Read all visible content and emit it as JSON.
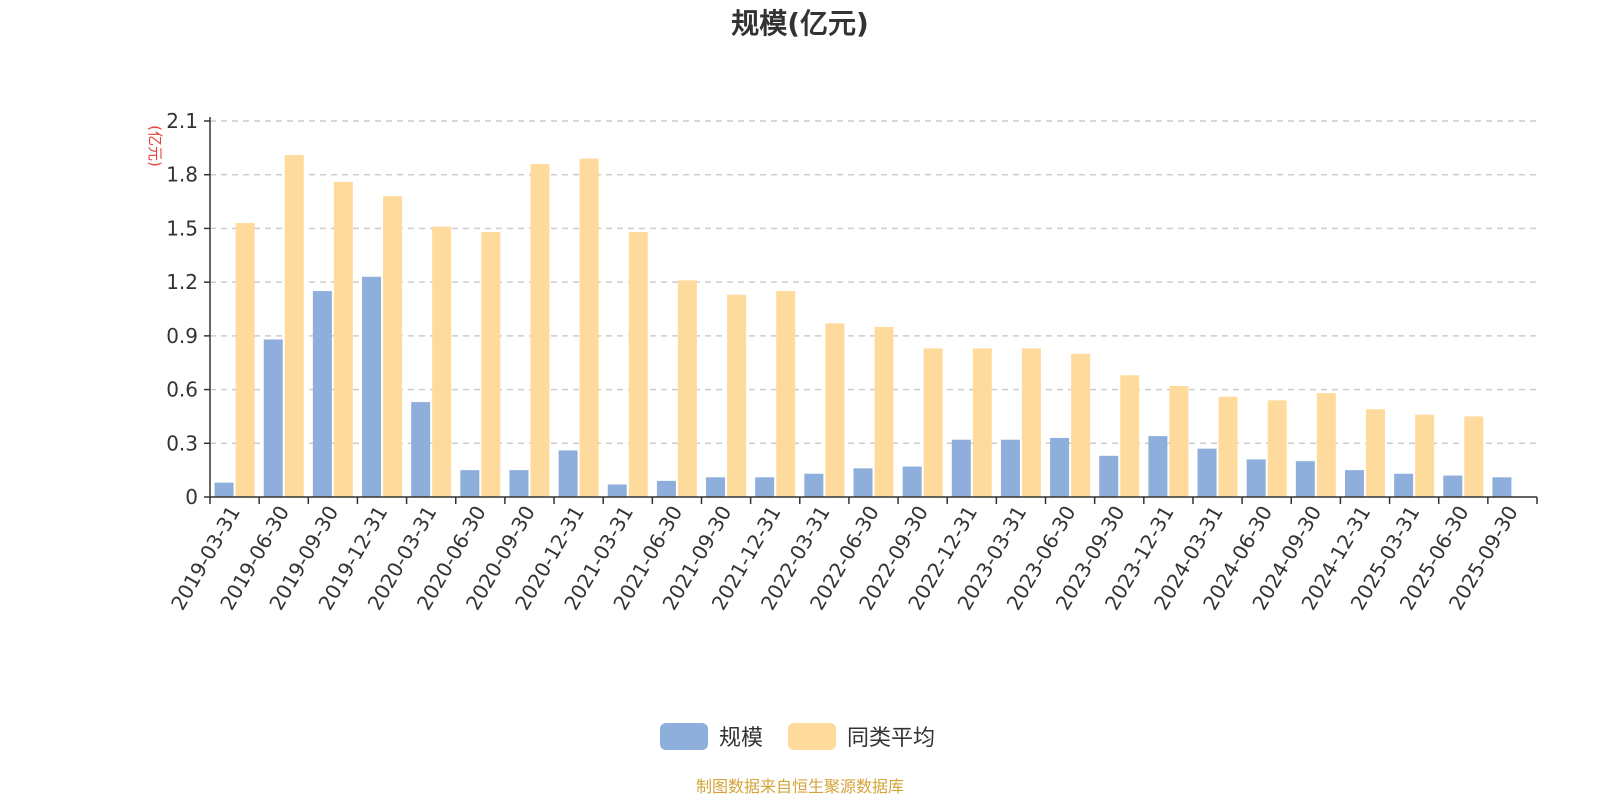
{
  "chart_data": {
    "type": "bar",
    "title": "规模(亿元)",
    "ylabel": "(亿元)",
    "xlabel": "",
    "ylim": [
      0,
      2.1
    ],
    "yticks": [
      "0",
      "0.3",
      "0.6",
      "0.9",
      "1.2",
      "1.5",
      "1.8",
      "2.1"
    ],
    "grid": true,
    "legend_position": "bottom-center",
    "categories": [
      "2019-03-31",
      "2019-06-30",
      "2019-09-30",
      "2019-12-31",
      "2020-03-31",
      "2020-06-30",
      "2020-09-30",
      "2020-12-31",
      "2021-03-31",
      "2021-06-30",
      "2021-09-30",
      "2021-12-31",
      "2022-03-31",
      "2022-06-30",
      "2022-09-30",
      "2022-12-31",
      "2023-03-31",
      "2023-06-30",
      "2023-09-30",
      "2023-12-31",
      "2024-03-31",
      "2024-06-30",
      "2024-09-30",
      "2024-12-31",
      "2025-03-31",
      "2025-06-30",
      "2025-09-30"
    ],
    "series": [
      {
        "name": "规模",
        "color": "#8eaedb",
        "values": [
          0.08,
          0.88,
          1.15,
          1.23,
          0.53,
          0.15,
          0.15,
          0.26,
          0.07,
          0.09,
          0.11,
          0.11,
          0.13,
          0.16,
          0.17,
          0.32,
          0.32,
          0.33,
          0.23,
          0.34,
          0.27,
          0.21,
          0.2,
          0.15,
          0.13,
          0.12,
          0.11
        ]
      },
      {
        "name": "同类平均",
        "color": "#fedb9d",
        "values": [
          1.53,
          1.91,
          1.76,
          1.68,
          1.51,
          1.48,
          1.86,
          1.89,
          1.48,
          1.21,
          1.13,
          1.15,
          0.97,
          0.95,
          0.83,
          0.83,
          0.83,
          0.8,
          0.68,
          0.62,
          0.56,
          0.54,
          0.58,
          0.49,
          0.46,
          0.45,
          null
        ]
      }
    ]
  },
  "colors": {
    "unit_label": "#e8413c",
    "source_text": "#d4a43a",
    "axis": "#333333",
    "grid": "#cccccc"
  },
  "source": "制图数据来自恒生聚源数据库"
}
